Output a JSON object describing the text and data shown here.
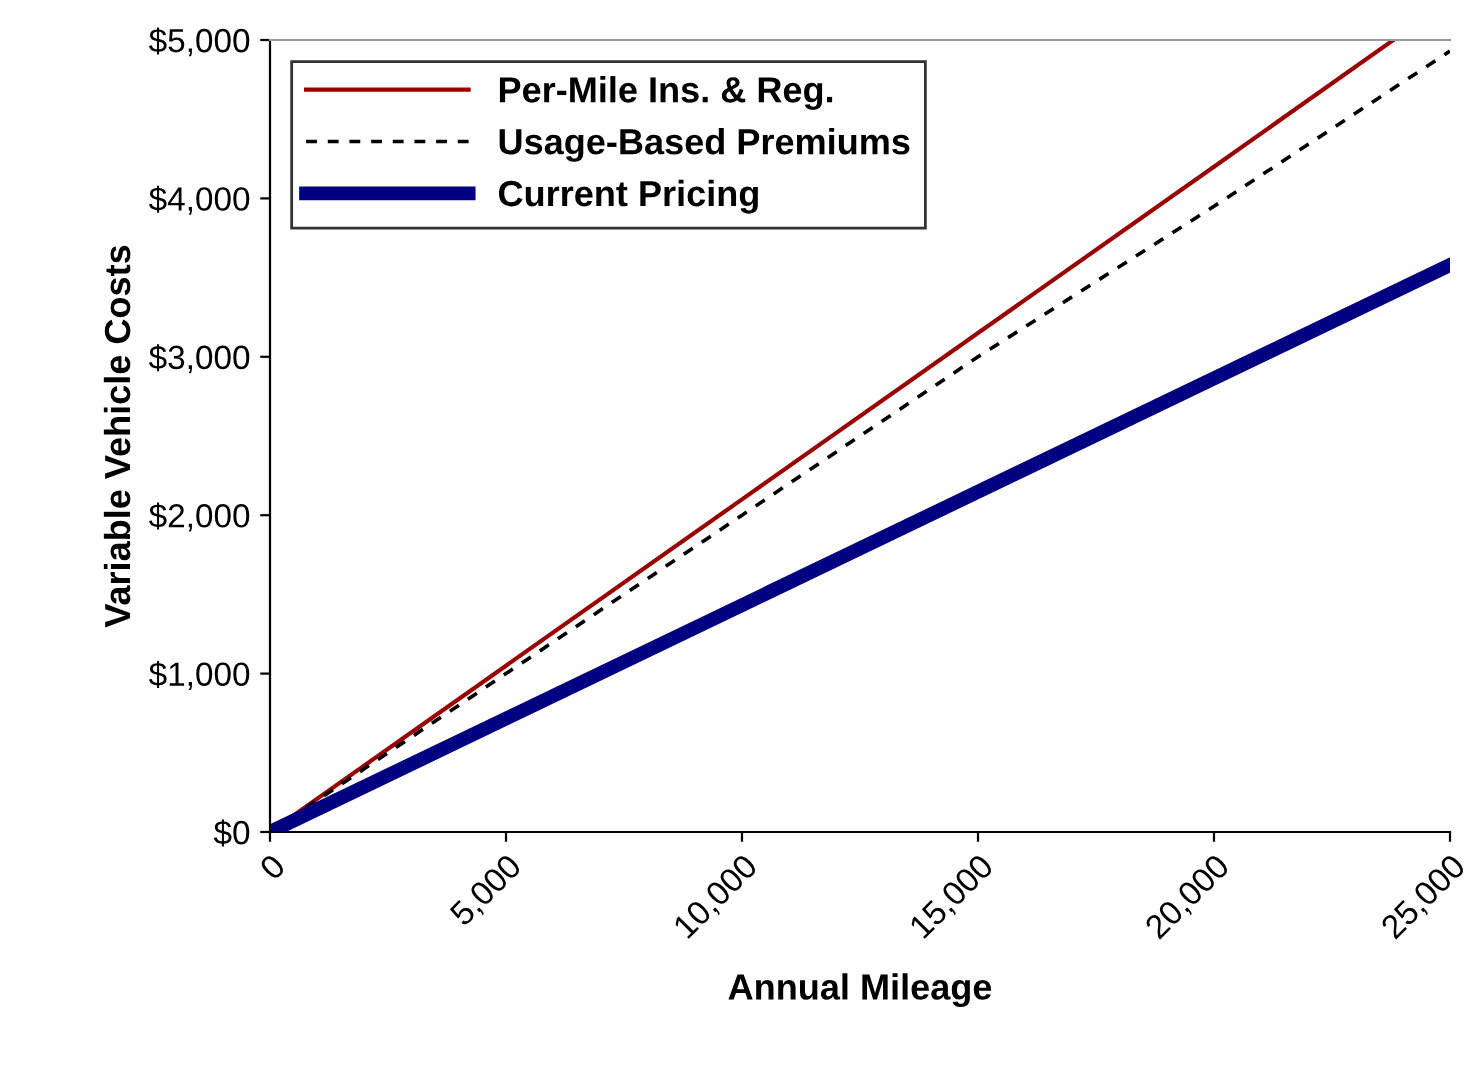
{
  "chart_data": {
    "type": "line",
    "xlabel": "Annual Mileage",
    "ylabel": "Variable Vehicle Costs",
    "xlim": [
      0,
      25000
    ],
    "xticks": [
      0,
      {
        "value": 5000,
        "label": "5,000"
      },
      {
        "value": 10000,
        "label": "10,000"
      },
      {
        "value": 15000,
        "label": "15,000"
      },
      {
        "value": 20000,
        "label": "20,000"
      },
      {
        "value": 25000,
        "label": "25,000"
      }
    ],
    "ylim": [
      0,
      5000
    ],
    "yticks": [
      {
        "value": 0,
        "label": "$0"
      },
      {
        "value": 1000,
        "label": "$1,000"
      },
      {
        "value": 2000,
        "label": "$2,000"
      },
      {
        "value": 3000,
        "label": "$3,000"
      },
      {
        "value": 4000,
        "label": "$4,000"
      },
      {
        "value": 5000,
        "label": "$5,000"
      }
    ],
    "grid": false,
    "legend": "top left",
    "marker": "none",
    "series": [
      {
        "name": "Per-Mile Ins. & Reg.",
        "color": "#990000",
        "line_style": "solid",
        "x": [
          0,
          5000,
          10000,
          15000,
          20000,
          23800
        ],
        "values": [
          0,
          1050,
          2100,
          3150,
          4200,
          5000
        ]
      },
      {
        "name": "Usage-Based Premiums",
        "color": "#000000",
        "line_style": "dashed",
        "x": [
          0,
          5000,
          10000,
          15000,
          20000,
          25000
        ],
        "values": [
          0,
          1000,
          2000,
          3000,
          3950,
          4930
        ]
      },
      {
        "name": "Current Pricing",
        "color": "#000080",
        "line_style": "solid",
        "x": [
          0,
          25000
        ],
        "values": [
          0,
          3580
        ]
      }
    ]
  }
}
